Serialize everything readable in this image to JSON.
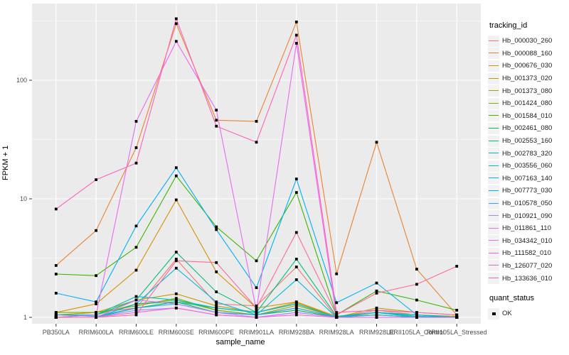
{
  "figure": {
    "y_axis_title": "FPKM + 1",
    "x_axis_title": "sample_name",
    "y_tick_labels": [
      "1",
      "10",
      "100"
    ],
    "legend_title": "tracking_id",
    "quant_legend": {
      "title": "quant_status",
      "items": [
        {
          "label": "OK",
          "marker": "black-square"
        }
      ]
    }
  },
  "chart_data": {
    "type": "line",
    "title": "",
    "xlabel": "sample_name",
    "ylabel": "FPKM + 1",
    "y_scale": "log10",
    "ylim": [
      0.88,
      440
    ],
    "y_major_ticks": [
      1,
      10,
      100
    ],
    "y_minor_ticks": [
      3.162,
      31.62,
      316.2
    ],
    "grid": true,
    "legend_position": "right",
    "panel_background": "#EBEBEB",
    "gridline_color": "#FFFFFF",
    "point_marker": "filled-black-square",
    "point_legend_label": "OK",
    "categories": [
      "PB350LA",
      "RRIM600LA",
      "RRIM600LE",
      "RRIM600SE",
      "RRIM600PE",
      "RRIM901LA",
      "RRIM928BA",
      "RRIM928LA",
      "RRIM928LE",
      "RRII105LA_Control",
      "RRII105LA_Stressed"
    ],
    "series": [
      {
        "name": "Hb_000030_260",
        "color": "#F8766D",
        "values": [
          1.05,
          1.1,
          1.2,
          3.1,
          1.3,
          1.25,
          2.66,
          1.0,
          1.15,
          1.05,
          1.0
        ]
      },
      {
        "name": "Hb_000088_160",
        "color": "#EA8331",
        "values": [
          2.74,
          5.4,
          27,
          300,
          46,
          45,
          310,
          2.33,
          30,
          2.55,
          1.05
        ]
      },
      {
        "name": "Hb_000676_030",
        "color": "#D89000",
        "values": [
          1.1,
          1.3,
          2.5,
          9.8,
          2.42,
          1.2,
          1.35,
          1.02,
          1.05,
          1.0,
          1.0
        ]
      },
      {
        "name": "Hb_001373_020",
        "color": "#C09B00",
        "values": [
          1.05,
          1.1,
          1.4,
          1.58,
          1.25,
          1.1,
          1.34,
          1.0,
          1.2,
          1.1,
          1.05
        ]
      },
      {
        "name": "Hb_001373_080",
        "color": "#A3A500",
        "values": [
          1.0,
          1.05,
          1.3,
          1.4,
          1.15,
          1.05,
          1.26,
          1.0,
          1.1,
          1.05,
          1.0
        ]
      },
      {
        "name": "Hb_001424_080",
        "color": "#7CAE00",
        "values": [
          1.1,
          1.1,
          1.25,
          1.45,
          1.15,
          1.05,
          1.2,
          1.0,
          1.1,
          1.05,
          1.02
        ]
      },
      {
        "name": "Hb_001584_010",
        "color": "#39B600",
        "values": [
          2.32,
          2.25,
          3.9,
          15.6,
          5.8,
          3.0,
          11.3,
          1.05,
          1.67,
          1.4,
          1.15
        ]
      },
      {
        "name": "Hb_002461_080",
        "color": "#00BB4E",
        "values": [
          1.0,
          1.0,
          1.2,
          1.35,
          1.1,
          1.05,
          1.15,
          1.0,
          1.05,
          1.0,
          1.0
        ]
      },
      {
        "name": "Hb_002553_160",
        "color": "#00BF7D",
        "values": [
          1.0,
          1.05,
          1.4,
          3.55,
          1.64,
          1.1,
          3.1,
          1.02,
          1.1,
          1.02,
          1.0
        ]
      },
      {
        "name": "Hb_002783_320",
        "color": "#00C1A3",
        "values": [
          1.0,
          1.0,
          1.3,
          1.35,
          1.2,
          1.1,
          1.3,
          1.0,
          1.1,
          1.0,
          1.0
        ]
      },
      {
        "name": "Hb_003556_060",
        "color": "#00BFC4",
        "values": [
          1.05,
          1.05,
          1.5,
          1.4,
          1.2,
          1.1,
          1.3,
          1.0,
          1.1,
          1.02,
          1.0
        ]
      },
      {
        "name": "Hb_007163_140",
        "color": "#00BAE0",
        "values": [
          1.0,
          1.0,
          1.3,
          2.6,
          1.35,
          1.05,
          2.08,
          1.0,
          1.1,
          1.05,
          1.0
        ]
      },
      {
        "name": "Hb_007773_030",
        "color": "#00B0F6",
        "values": [
          1.6,
          1.35,
          5.9,
          18.3,
          5.5,
          1.78,
          14.7,
          1.33,
          1.95,
          1.05,
          1.0
        ]
      },
      {
        "name": "Hb_010578_050",
        "color": "#35A2FF",
        "values": [
          1.05,
          1.02,
          1.2,
          1.3,
          1.1,
          1.05,
          1.2,
          1.0,
          1.05,
          1.0,
          1.0
        ]
      },
      {
        "name": "Hb_010921_090",
        "color": "#9590FF",
        "values": [
          1.0,
          1.0,
          1.15,
          1.2,
          1.05,
          1.0,
          1.1,
          1.0,
          1.0,
          1.0,
          1.0
        ]
      },
      {
        "name": "Hb_011861_110",
        "color": "#C77CFF",
        "values": [
          1.0,
          1.0,
          1.4,
          1.3,
          1.1,
          1.0,
          1.1,
          1.0,
          1.0,
          1.0,
          1.0
        ]
      },
      {
        "name": "Hb_034342_010",
        "color": "#E76BF3",
        "values": [
          1.0,
          1.05,
          45,
          213,
          56,
          1.15,
          205,
          1.0,
          1.0,
          1.0,
          1.0
        ]
      },
      {
        "name": "Hb_111582_010",
        "color": "#FA62DB",
        "values": [
          1.0,
          1.0,
          1.1,
          1.2,
          1.05,
          1.0,
          1.05,
          1.0,
          1.0,
          1.0,
          1.0
        ]
      },
      {
        "name": "Hb_126077_020",
        "color": "#FF62BC",
        "values": [
          8.2,
          14.5,
          20,
          330,
          41,
          30,
          240,
          1.1,
          1.15,
          1.1,
          1.05
        ]
      },
      {
        "name": "Hb_133636_010",
        "color": "#FF6A98",
        "values": [
          1.0,
          1.0,
          1.05,
          3.0,
          2.9,
          1.2,
          5.2,
          1.05,
          1.6,
          1.9,
          2.7
        ]
      }
    ]
  }
}
